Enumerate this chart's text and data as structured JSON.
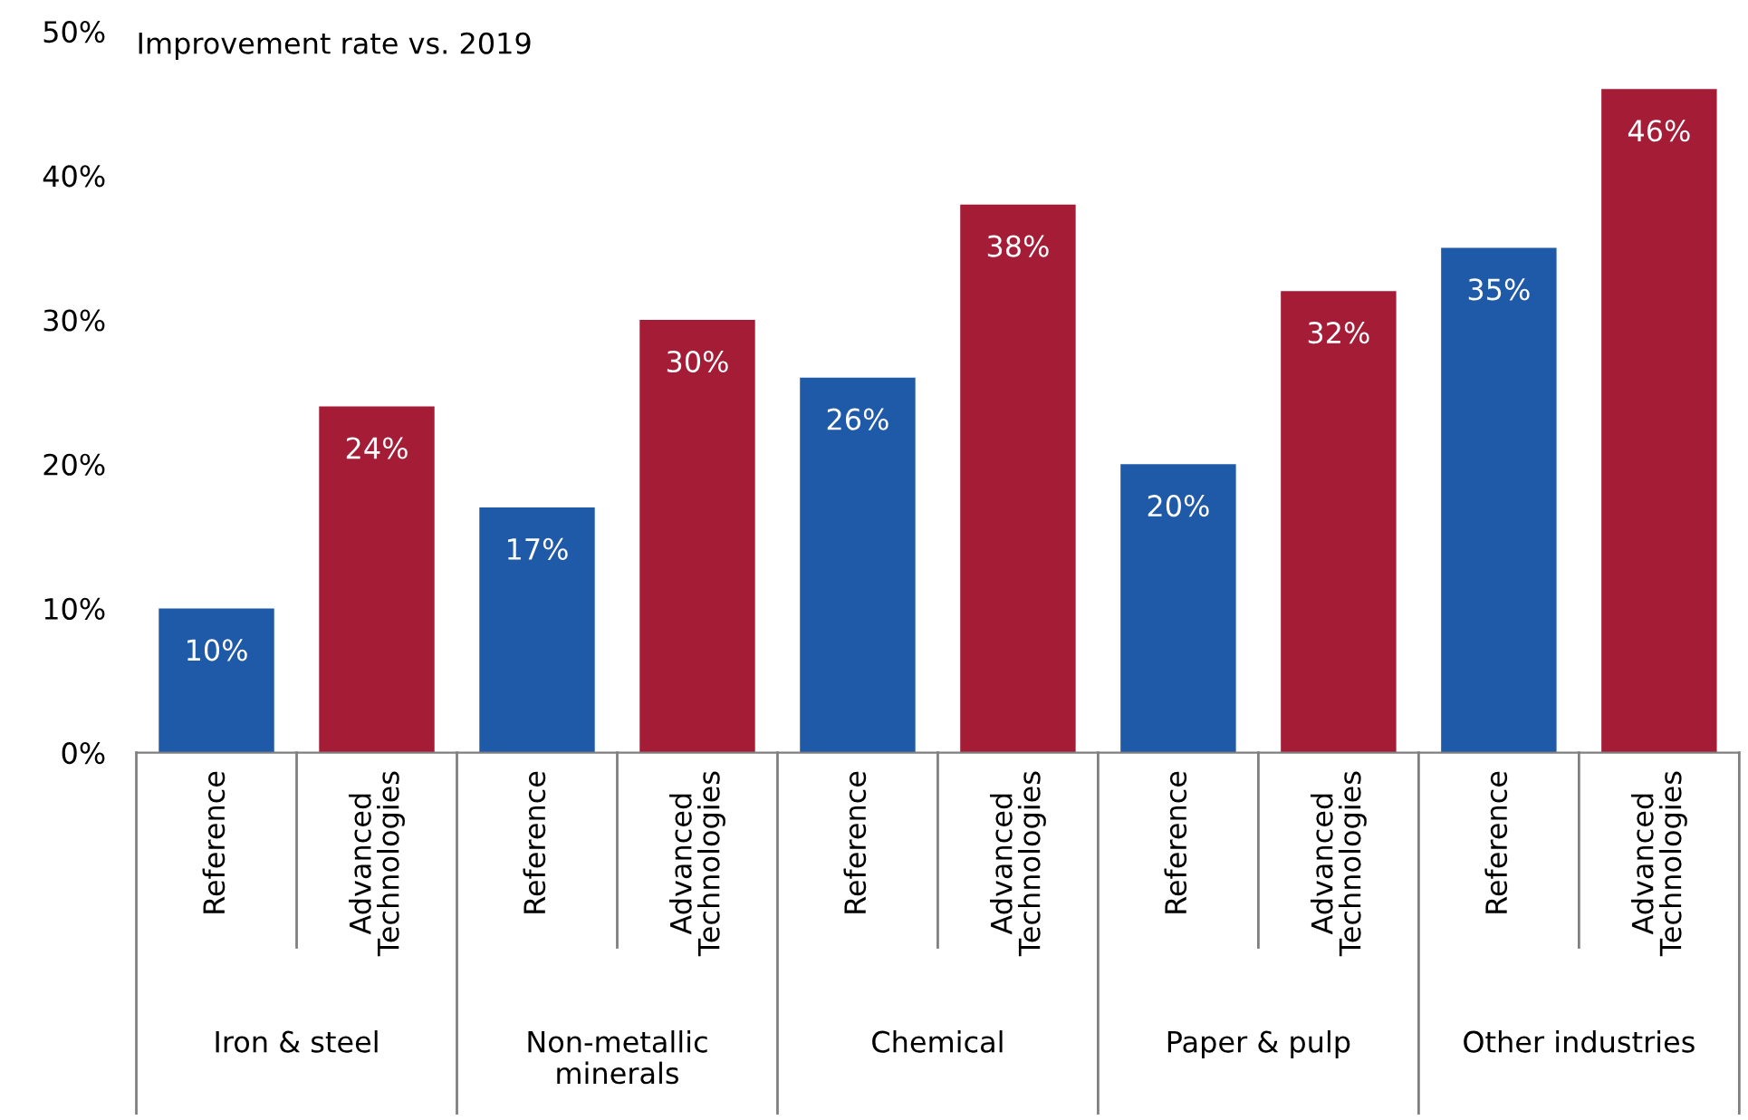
{
  "chart_data": {
    "type": "bar",
    "title": "Improvement rate vs. 2019",
    "categories": [
      "Reference",
      "Advanced Technologies",
      "Reference",
      "Advanced Technologies",
      "Reference",
      "Advanced Technologies",
      "Reference",
      "Advanced Technologies",
      "Reference",
      "Advanced Technologies"
    ],
    "values": [
      10,
      24,
      17,
      30,
      26,
      38,
      20,
      32,
      35,
      46
    ],
    "value_labels": [
      "10%",
      "24%",
      "17%",
      "30%",
      "26%",
      "38%",
      "20%",
      "32%",
      "35%",
      "46%"
    ],
    "colors": [
      "#1f5aa8",
      "#a51c36",
      "#1f5aa8",
      "#a51c36",
      "#1f5aa8",
      "#a51c36",
      "#1f5aa8",
      "#a51c36",
      "#1f5aa8",
      "#a51c36"
    ],
    "annotations": [
      "Iron & steel",
      "Non-metallic minerals",
      "Chemical",
      "Paper & pulp",
      "Other industries"
    ],
    "ylim": [
      0,
      50
    ],
    "yticks": [
      {
        "value": 0,
        "label": "0%"
      },
      {
        "value": 10,
        "label": "10%"
      },
      {
        "value": 20,
        "label": "20%"
      },
      {
        "value": 30,
        "label": "30%"
      },
      {
        "value": 40,
        "label": "40%"
      },
      {
        "value": 50,
        "label": "50%"
      }
    ],
    "grid": false,
    "legend": false
  }
}
